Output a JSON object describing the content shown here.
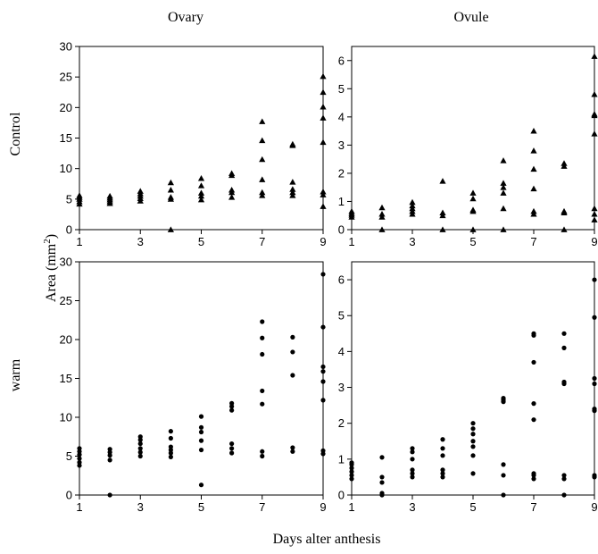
{
  "figure": {
    "col_titles": [
      "Ovary",
      "Ovule"
    ],
    "row_labels": [
      "Control",
      "warm"
    ],
    "ylabel": "Area (mm",
    "ylabel_sup": "2",
    "ylabel_close": ")",
    "xlabel": "Days alter anthesis"
  },
  "chart_data": [
    {
      "type": "scatter",
      "panel": "control-ovary",
      "marker": "triangle",
      "xlim": [
        1,
        9
      ],
      "ylim": [
        0,
        30
      ],
      "xticks": [
        1,
        3,
        5,
        7,
        9
      ],
      "yticks": [
        0,
        5,
        10,
        15,
        20,
        25,
        30
      ],
      "points": [
        [
          1,
          4.2
        ],
        [
          1,
          4.6
        ],
        [
          1,
          5.0
        ],
        [
          1,
          5.3
        ],
        [
          1,
          5.6
        ],
        [
          2,
          4.3
        ],
        [
          2,
          4.6
        ],
        [
          2,
          4.9
        ],
        [
          2,
          5.2
        ],
        [
          2,
          5.5
        ],
        [
          3,
          4.7
        ],
        [
          3,
          5.1
        ],
        [
          3,
          5.5
        ],
        [
          3,
          5.9
        ],
        [
          3,
          6.3
        ],
        [
          4,
          0
        ],
        [
          4,
          5.0
        ],
        [
          4,
          5.3
        ],
        [
          4,
          6.5
        ],
        [
          4,
          7.7
        ],
        [
          5,
          4.9
        ],
        [
          5,
          5.5
        ],
        [
          5,
          6.0
        ],
        [
          5,
          7.2
        ],
        [
          5,
          8.4
        ],
        [
          6,
          5.3
        ],
        [
          6,
          6.1
        ],
        [
          6,
          6.5
        ],
        [
          6,
          8.9
        ],
        [
          6,
          9.2
        ],
        [
          7,
          5.6
        ],
        [
          7,
          6.1
        ],
        [
          7,
          8.2
        ],
        [
          7,
          11.5
        ],
        [
          7,
          14.6
        ],
        [
          7,
          17.7
        ],
        [
          8,
          5.6
        ],
        [
          8,
          6.1
        ],
        [
          8,
          6.6
        ],
        [
          8,
          7.8
        ],
        [
          8,
          13.8
        ],
        [
          8,
          14.0
        ],
        [
          9,
          3.8
        ],
        [
          9,
          5.7
        ],
        [
          9,
          6.2
        ],
        [
          9,
          14.3
        ],
        [
          9,
          18.3
        ],
        [
          9,
          20.1
        ],
        [
          9,
          22.5
        ],
        [
          9,
          25.1
        ]
      ]
    },
    {
      "type": "scatter",
      "panel": "control-ovule",
      "marker": "triangle",
      "xlim": [
        1,
        9
      ],
      "ylim": [
        0,
        6.5
      ],
      "xticks": [
        1,
        3,
        5,
        7,
        9
      ],
      "yticks": [
        0,
        1,
        2,
        3,
        4,
        5,
        6
      ],
      "points": [
        [
          1,
          0.45
        ],
        [
          1,
          0.52
        ],
        [
          1,
          0.58
        ],
        [
          1,
          0.65
        ],
        [
          2,
          0.0
        ],
        [
          2,
          0.45
        ],
        [
          2,
          0.55
        ],
        [
          2,
          0.78
        ],
        [
          3,
          0.55
        ],
        [
          3,
          0.65
        ],
        [
          3,
          0.75
        ],
        [
          3,
          0.85
        ],
        [
          3,
          0.97
        ],
        [
          4,
          0.0
        ],
        [
          4,
          0.5
        ],
        [
          4,
          0.6
        ],
        [
          4,
          1.72
        ],
        [
          5,
          0.0
        ],
        [
          5,
          0.65
        ],
        [
          5,
          0.7
        ],
        [
          5,
          1.1
        ],
        [
          5,
          1.3
        ],
        [
          6,
          0.0
        ],
        [
          6,
          0.75
        ],
        [
          6,
          1.3
        ],
        [
          6,
          1.5
        ],
        [
          6,
          1.65
        ],
        [
          6,
          2.45
        ],
        [
          7,
          0.55
        ],
        [
          7,
          0.65
        ],
        [
          7,
          1.45
        ],
        [
          7,
          2.15
        ],
        [
          7,
          2.8
        ],
        [
          7,
          3.5
        ],
        [
          8,
          0.0
        ],
        [
          8,
          0.6
        ],
        [
          8,
          0.65
        ],
        [
          8,
          2.25
        ],
        [
          8,
          2.35
        ],
        [
          9,
          0.35
        ],
        [
          9,
          0.55
        ],
        [
          9,
          0.75
        ],
        [
          9,
          3.4
        ],
        [
          9,
          4.05
        ],
        [
          9,
          4.1
        ],
        [
          9,
          4.8
        ],
        [
          9,
          6.15
        ]
      ]
    },
    {
      "type": "scatter",
      "panel": "warm-ovary",
      "marker": "circle",
      "xlim": [
        1,
        9
      ],
      "ylim": [
        0,
        30
      ],
      "xticks": [
        1,
        3,
        5,
        7,
        9
      ],
      "yticks": [
        0,
        5,
        10,
        15,
        20,
        25,
        30
      ],
      "points": [
        [
          1,
          3.8
        ],
        [
          1,
          4.2
        ],
        [
          1,
          4.7
        ],
        [
          1,
          5.2
        ],
        [
          1,
          5.6
        ],
        [
          1,
          6.0
        ],
        [
          2,
          0
        ],
        [
          2,
          4.5
        ],
        [
          2,
          5.1
        ],
        [
          2,
          5.5
        ],
        [
          2,
          5.9
        ],
        [
          3,
          5.0
        ],
        [
          3,
          5.5
        ],
        [
          3,
          6.0
        ],
        [
          3,
          6.6
        ],
        [
          3,
          7.1
        ],
        [
          3,
          7.5
        ],
        [
          4,
          4.9
        ],
        [
          4,
          5.4
        ],
        [
          4,
          5.8
        ],
        [
          4,
          6.2
        ],
        [
          4,
          7.3
        ],
        [
          4,
          8.2
        ],
        [
          5,
          1.3
        ],
        [
          5,
          5.8
        ],
        [
          5,
          7.0
        ],
        [
          5,
          8.1
        ],
        [
          5,
          8.7
        ],
        [
          5,
          10.1
        ],
        [
          6,
          5.4
        ],
        [
          6,
          6.0
        ],
        [
          6,
          6.6
        ],
        [
          6,
          10.9
        ],
        [
          6,
          11.4
        ],
        [
          6,
          11.8
        ],
        [
          7,
          5.0
        ],
        [
          7,
          5.6
        ],
        [
          7,
          11.7
        ],
        [
          7,
          13.4
        ],
        [
          7,
          18.1
        ],
        [
          7,
          20.2
        ],
        [
          7,
          22.3
        ],
        [
          8,
          5.6
        ],
        [
          8,
          6.1
        ],
        [
          8,
          15.4
        ],
        [
          8,
          18.4
        ],
        [
          8,
          20.3
        ],
        [
          9,
          5.3
        ],
        [
          9,
          5.7
        ],
        [
          9,
          12.2
        ],
        [
          9,
          14.6
        ],
        [
          9,
          15.9
        ],
        [
          9,
          16.5
        ],
        [
          9,
          21.6
        ],
        [
          9,
          28.4
        ]
      ]
    },
    {
      "type": "scatter",
      "panel": "warm-ovule",
      "marker": "circle",
      "xlim": [
        1,
        9
      ],
      "ylim": [
        0,
        6.5
      ],
      "xticks": [
        1,
        3,
        5,
        7,
        9
      ],
      "yticks": [
        0,
        1,
        2,
        3,
        4,
        5,
        6
      ],
      "points": [
        [
          1,
          0.45
        ],
        [
          1,
          0.55
        ],
        [
          1,
          0.65
        ],
        [
          1,
          0.75
        ],
        [
          1,
          0.85
        ],
        [
          1,
          0.9
        ],
        [
          2,
          0.0
        ],
        [
          2,
          0.05
        ],
        [
          2,
          0.35
        ],
        [
          2,
          0.5
        ],
        [
          2,
          1.05
        ],
        [
          3,
          0.5
        ],
        [
          3,
          0.6
        ],
        [
          3,
          0.7
        ],
        [
          3,
          1.0
        ],
        [
          3,
          1.2
        ],
        [
          3,
          1.3
        ],
        [
          4,
          0.5
        ],
        [
          4,
          0.6
        ],
        [
          4,
          0.7
        ],
        [
          4,
          1.1
        ],
        [
          4,
          1.3
        ],
        [
          4,
          1.55
        ],
        [
          5,
          0.6
        ],
        [
          5,
          1.1
        ],
        [
          5,
          1.35
        ],
        [
          5,
          1.5
        ],
        [
          5,
          1.7
        ],
        [
          5,
          1.85
        ],
        [
          5,
          2.0
        ],
        [
          6,
          0.0
        ],
        [
          6,
          0.55
        ],
        [
          6,
          0.85
        ],
        [
          6,
          2.6
        ],
        [
          6,
          2.65
        ],
        [
          6,
          2.7
        ],
        [
          7,
          0.45
        ],
        [
          7,
          0.55
        ],
        [
          7,
          0.6
        ],
        [
          7,
          2.1
        ],
        [
          7,
          2.55
        ],
        [
          7,
          3.7
        ],
        [
          7,
          4.45
        ],
        [
          7,
          4.5
        ],
        [
          8,
          0.0
        ],
        [
          8,
          0.45
        ],
        [
          8,
          0.55
        ],
        [
          8,
          3.1
        ],
        [
          8,
          3.15
        ],
        [
          8,
          4.1
        ],
        [
          8,
          4.5
        ],
        [
          9,
          0.5
        ],
        [
          9,
          0.55
        ],
        [
          9,
          2.35
        ],
        [
          9,
          2.4
        ],
        [
          9,
          3.1
        ],
        [
          9,
          3.25
        ],
        [
          9,
          4.95
        ],
        [
          9,
          6.0
        ]
      ]
    }
  ]
}
